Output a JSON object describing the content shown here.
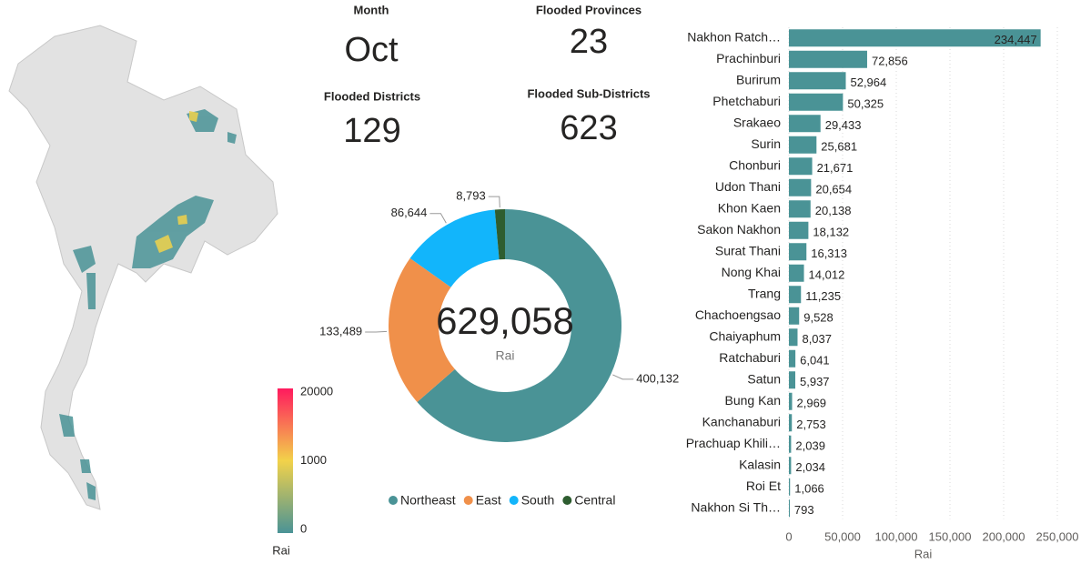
{
  "kpis": [
    {
      "label": "Month",
      "value": "Oct"
    },
    {
      "label": "Flooded Provinces",
      "value": "23"
    },
    {
      "label": "Flooded Districts",
      "value": "129"
    },
    {
      "label": "Flooded Sub-Districts",
      "value": "623"
    }
  ],
  "map": {
    "colorbar": {
      "ticks": [
        0,
        1000,
        20000
      ],
      "colors": [
        "#4a9396",
        "#f2d24a",
        "#ff1a5e"
      ],
      "label": "Rai"
    }
  },
  "chart_data": [
    {
      "type": "donut",
      "categories": [
        "Northeast",
        "East",
        "South",
        "Central"
      ],
      "values": [
        400132,
        133489,
        86644,
        8793
      ],
      "value_labels": [
        "400,132",
        "133,489",
        "86,644",
        "8,793"
      ],
      "colors": [
        "#4a9396",
        "#f0904a",
        "#12b5fb",
        "#2e5d30"
      ],
      "center_label": "629,058",
      "center_sublabel": "Rai",
      "legend": "bottom"
    },
    {
      "type": "hbar",
      "categories": [
        "Nakhon Ratch…",
        "Prachinburi",
        "Burirum",
        "Phetchaburi",
        "Srakaeo",
        "Surin",
        "Chonburi",
        "Udon Thani",
        "Khon Kaen",
        "Sakon Nakhon",
        "Surat Thani",
        "Nong Khai",
        "Trang",
        "Chachoengsao",
        "Chaiyaphum",
        "Ratchaburi",
        "Satun",
        "Bung Kan",
        "Kanchanaburi",
        "Prachuap Khili…",
        "Kalasin",
        "Roi Et",
        "Nakhon Si Th…"
      ],
      "values": [
        234447,
        72856,
        52964,
        50325,
        29433,
        25681,
        21671,
        20654,
        20138,
        18132,
        16313,
        14012,
        11235,
        9528,
        8037,
        6041,
        5937,
        2969,
        2753,
        2039,
        2034,
        1066,
        793
      ],
      "value_labels": [
        "234,447",
        "72,856",
        "52,964",
        "50,325",
        "29,433",
        "25,681",
        "21,671",
        "20,654",
        "20,138",
        "18,132",
        "16,313",
        "14,012",
        "11,235",
        "9,528",
        "8,037",
        "6,041",
        "5,937",
        "2,969",
        "2,753",
        "2,039",
        "2,034",
        "1,066",
        "793"
      ],
      "color": "#4a9396",
      "xlim": [
        0,
        250000
      ],
      "xticks": [
        0,
        {
          "value": 50000,
          "label": "50,000"
        },
        {
          "value": 100000,
          "label": "100,000"
        },
        {
          "value": 150000,
          "label": "150,000"
        },
        {
          "value": 200000,
          "label": "200,000"
        },
        {
          "value": 250000,
          "label": "250,000"
        }
      ],
      "xlabel": "Rai",
      "grid": true
    }
  ]
}
